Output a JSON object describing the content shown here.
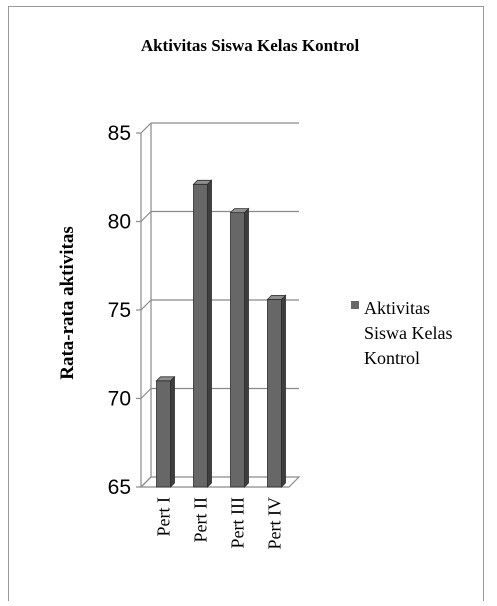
{
  "chart_data": {
    "type": "bar",
    "title": "Aktivitas Siswa Kelas Kontrol",
    "ylabel": "Rata-rata aktivitas",
    "xlabel": "",
    "categories": [
      "Pert I",
      "Pert II",
      "Pert III",
      "Pert IV"
    ],
    "series": [
      {
        "name": "Aktivitas Siswa Kelas Kontrol",
        "values": [
          71,
          82.1,
          80.5,
          75.6
        ]
      }
    ],
    "ylim": [
      65,
      85
    ],
    "yticks": [
      "65",
      "70",
      "75",
      "80",
      "85"
    ],
    "legend_lines": [
      "Aktivitas",
      "Siswa Kelas",
      "Kontrol"
    ],
    "legend": "right",
    "grid": true,
    "style": "3d-column",
    "colors": {
      "bar": "#676767",
      "bar_side": "#3e3e3e",
      "bar_top": "#8f8f8f",
      "grid": "#8a8a8a"
    }
  }
}
